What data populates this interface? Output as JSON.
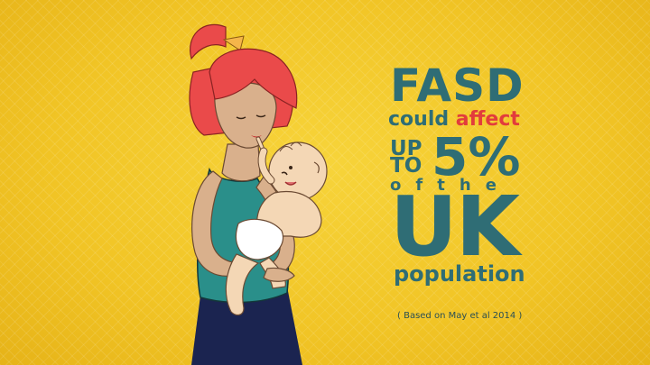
{
  "headline": {
    "line1": "FASD",
    "line2_prefix": "could ",
    "line2_highlight": "affect",
    "upto_a": "UP",
    "upto_b": "TO",
    "percent": "5%",
    "of_a": "o",
    "of_b": "f",
    "the_a": "t",
    "the_b": "h",
    "the_c": "e",
    "country": "UK",
    "population": "population"
  },
  "citation": "( Based on May et al 2014 )",
  "colors": {
    "background": "#f1c425",
    "text_teal": "#2f6d75",
    "highlight_red": "#e23c3c",
    "hair": "#ea4a4a",
    "top": "#2a8f8a",
    "pants": "#1b2450",
    "skin": "#d9b08c",
    "baby_skin": "#f4d7b5"
  }
}
